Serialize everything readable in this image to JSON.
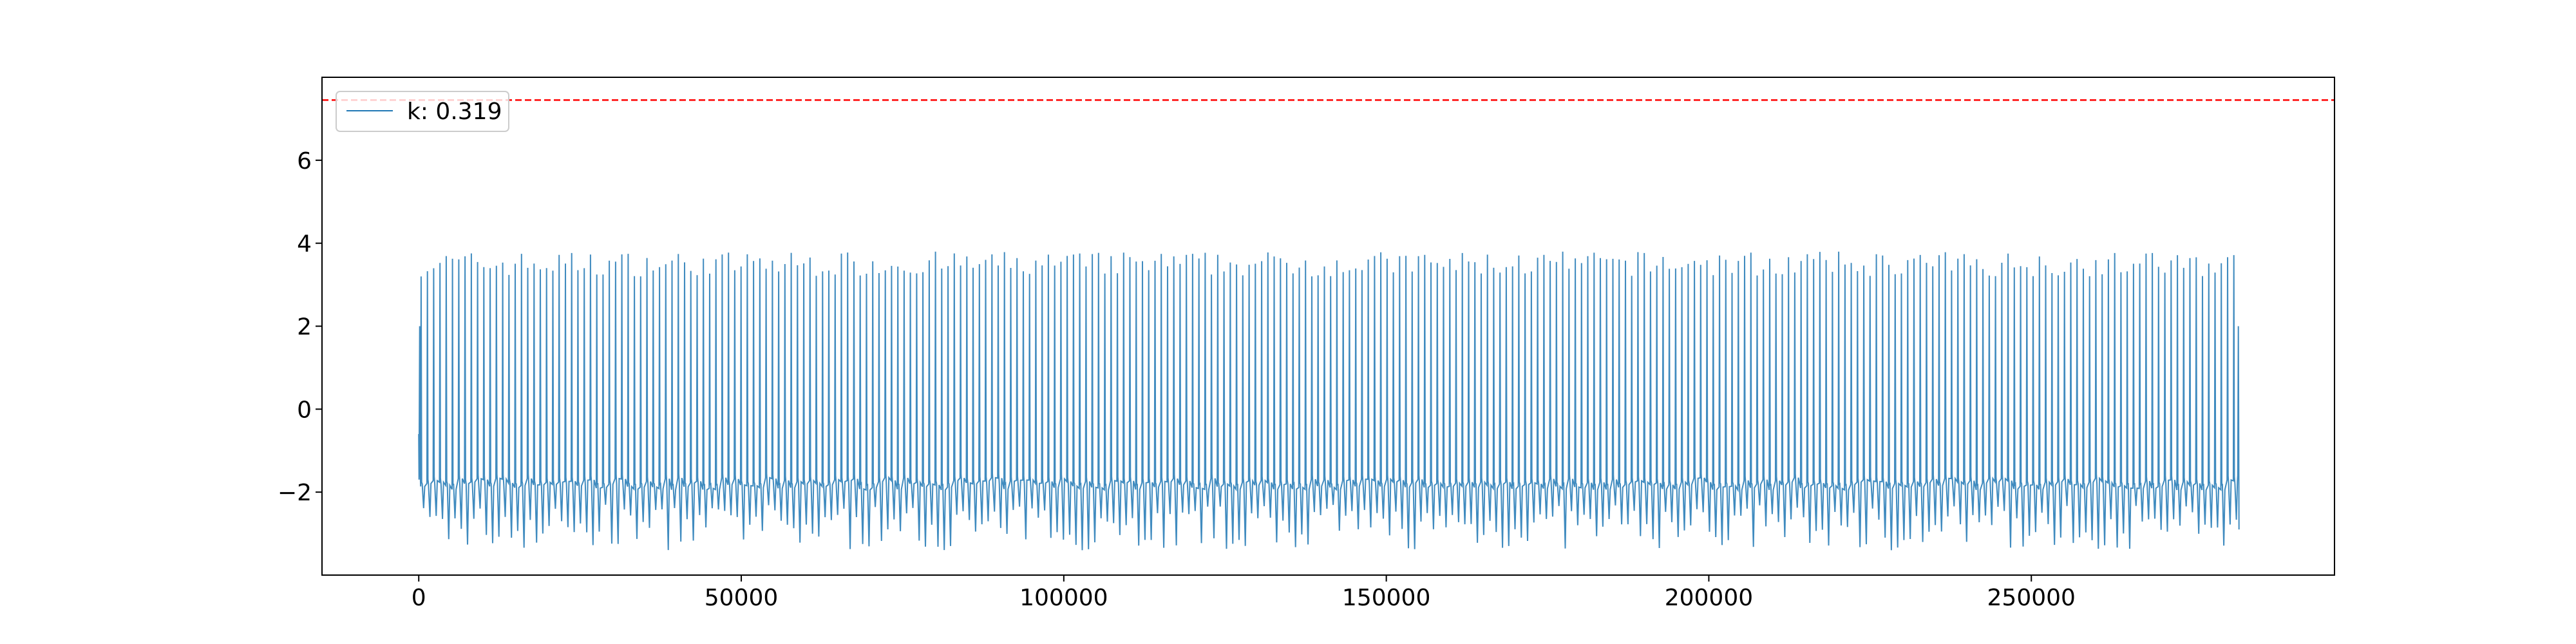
{
  "chart_data": {
    "type": "line",
    "title": "",
    "xlabel": "",
    "ylabel": "",
    "xlim": [
      -15000,
      297000
    ],
    "ylim": [
      -4.0,
      8.0
    ],
    "x_ticks": [
      0,
      50000,
      100000,
      150000,
      200000,
      250000
    ],
    "x_tick_labels": [
      "0",
      "50000",
      "100000",
      "150000",
      "200000",
      "250000"
    ],
    "y_ticks": [
      -2,
      0,
      2,
      4,
      6
    ],
    "y_tick_labels": [
      "−2",
      "0",
      "2",
      "4",
      "6"
    ],
    "grid": false,
    "legend_position": "upper-left",
    "series": [
      {
        "name": "k: 0.319",
        "color": "#1f77b4",
        "style": "oscillating signal",
        "x_range": [
          0,
          282000
        ],
        "num_cycles": 290,
        "upper_peaks_approx": [
          3.2,
          3.8
        ],
        "lower_troughs_approx": [
          -3.4,
          -2.3
        ],
        "baseline_approx": -1.8
      }
    ],
    "reference_lines": [
      {
        "orientation": "horizontal",
        "y": 7.45,
        "color": "#ff0000",
        "style": "dashed"
      }
    ]
  }
}
